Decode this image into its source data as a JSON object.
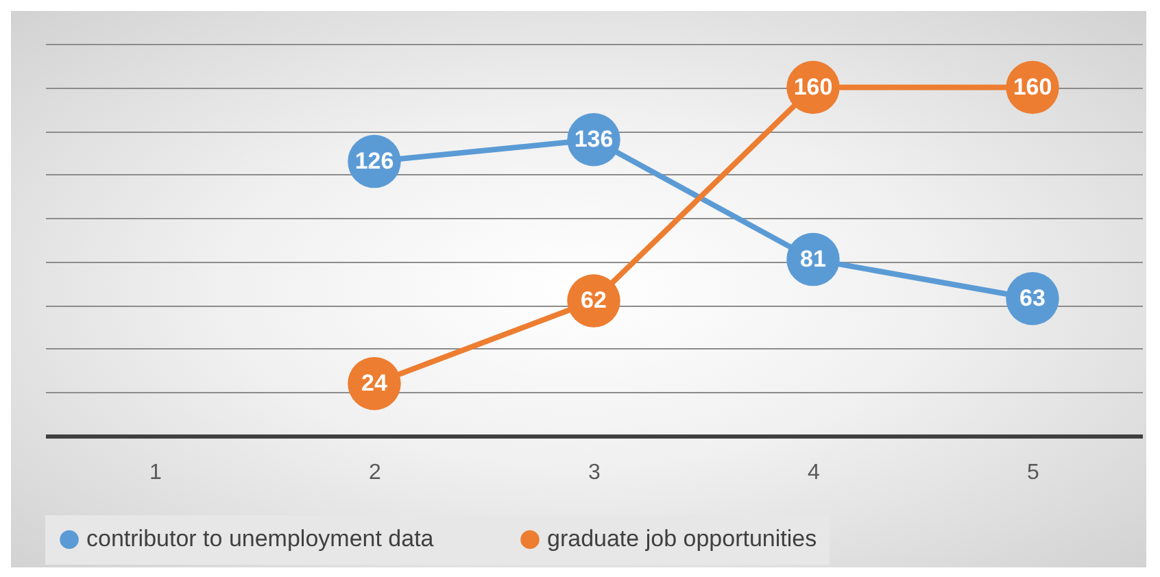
{
  "chart_data": {
    "type": "line",
    "categories": [
      "1",
      "2",
      "3",
      "4",
      "5"
    ],
    "series": [
      {
        "name": "contributor to unemployment data",
        "color": "#5b9bd5",
        "values": [
          null,
          126,
          136,
          81,
          63
        ]
      },
      {
        "name": "graduate job opportunities",
        "color": "#ed7d31",
        "values": [
          null,
          24,
          62,
          160,
          160
        ]
      }
    ],
    "ylim": [
      0,
      180
    ],
    "yticks": [
      {
        "value": 0,
        "label": null
      },
      {
        "value": 20,
        "label": null
      },
      {
        "value": 40,
        "label": null
      },
      {
        "value": 60,
        "label": null
      },
      {
        "value": 80,
        "label": null
      },
      {
        "value": 100,
        "label": null
      },
      {
        "value": 120,
        "label": null
      },
      {
        "value": 140,
        "label": null
      },
      {
        "value": 160,
        "label": null
      },
      {
        "value": 180,
        "label": null
      }
    ],
    "tick_labels": "x",
    "grid": "y",
    "legend": "bottom",
    "data_labels": true,
    "marker": "circle",
    "line_style": "solid"
  }
}
